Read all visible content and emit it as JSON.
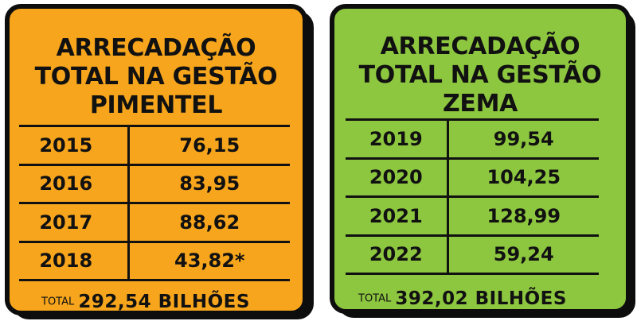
{
  "left": {
    "title_lines": [
      "ARRECADAÇÃO",
      "TOTAL NA GESTÃO",
      "PIMENTEL"
    ],
    "rows": [
      {
        "year": "2015",
        "value": "76,15"
      },
      {
        "year": "2016",
        "value": "83,95"
      },
      {
        "year": "2017",
        "value": "88,62"
      },
      {
        "year": "2018",
        "value": "43,82*"
      }
    ],
    "total_label": "TOTAL",
    "total_value": "292,54 BILHÕES",
    "background": "#f7a51c"
  },
  "right": {
    "title_lines": [
      "ARRECADAÇÃO",
      "TOTAL NA GESTÃO",
      "ZEMA"
    ],
    "rows": [
      {
        "year": "2019",
        "value": "99,54"
      },
      {
        "year": "2020",
        "value": "104,25"
      },
      {
        "year": "2021",
        "value": "128,99"
      },
      {
        "year": "2022",
        "value": "59,24"
      }
    ],
    "total_label": "TOTAL",
    "total_value": "392,02 BILHÕES",
    "background": "#8dc63f"
  }
}
